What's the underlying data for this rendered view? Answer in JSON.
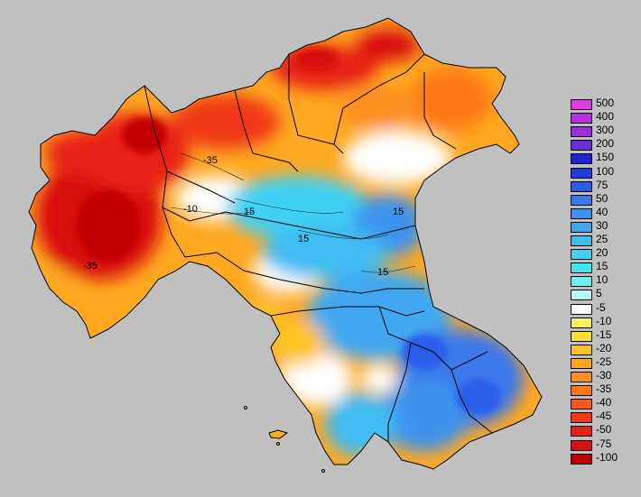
{
  "legend": {
    "entries": [
      {
        "label": "500",
        "color": "#e23ae6"
      },
      {
        "label": "400",
        "color": "#b82ee0"
      },
      {
        "label": "300",
        "color": "#9a2ee0"
      },
      {
        "label": "200",
        "color": "#6a2ed8"
      },
      {
        "label": "150",
        "color": "#2020d8"
      },
      {
        "label": "100",
        "color": "#1e3ce0"
      },
      {
        "label": "75",
        "color": "#2a5ee8"
      },
      {
        "label": "50",
        "color": "#3a78ec"
      },
      {
        "label": "40",
        "color": "#3c92ee"
      },
      {
        "label": "30",
        "color": "#40a8f0"
      },
      {
        "label": "25",
        "color": "#40bcf2"
      },
      {
        "label": "20",
        "color": "#40d0f4"
      },
      {
        "label": "15",
        "color": "#40e4f4"
      },
      {
        "label": "10",
        "color": "#70f0f4"
      },
      {
        "label": "5",
        "color": "#b8f8f8"
      },
      {
        "label": "-5",
        "color": "#ffffff"
      },
      {
        "label": "-10",
        "color": "#fff060"
      },
      {
        "label": "-15",
        "color": "#ffe030"
      },
      {
        "label": "-20",
        "color": "#ffc420"
      },
      {
        "label": "-25",
        "color": "#ffa820"
      },
      {
        "label": "-30",
        "color": "#ff9020"
      },
      {
        "label": "-35",
        "color": "#ff7818"
      },
      {
        "label": "-40",
        "color": "#f85818"
      },
      {
        "label": "-45",
        "color": "#f03818"
      },
      {
        "label": "-50",
        "color": "#e82018"
      },
      {
        "label": "-75",
        "color": "#d81010"
      },
      {
        "label": "-100",
        "color": "#c00000"
      }
    ]
  },
  "contour_labels": [
    "-35",
    "-10",
    "15",
    "15",
    "15",
    "15",
    "-35"
  ],
  "colors": {
    "background": "#c0c0c0",
    "border": "#000000"
  }
}
